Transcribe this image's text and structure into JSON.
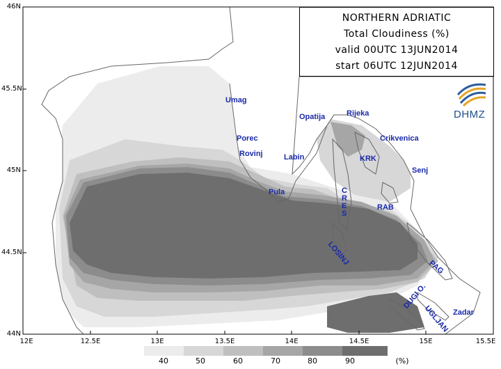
{
  "title_box": {
    "line1": "NORTHERN ADRIATIC",
    "line2": "Total Cloudiness (%)",
    "line3": "valid 00UTC 13JUN2014",
    "line4": "start 06UTC 12JUN2014"
  },
  "logo": {
    "text": "DHMZ",
    "icon": "dhmz-swirl-logo"
  },
  "axes": {
    "lat_ticks": [
      "46N",
      "45.5N",
      "45N",
      "44.5N",
      "44N"
    ],
    "lon_ticks": [
      "12E",
      "12.5E",
      "13E",
      "13.5E",
      "14E",
      "14.5E",
      "15E",
      "15.5E"
    ]
  },
  "places": {
    "umag": "Umag",
    "porec": "Porec",
    "rovinj": "Rovinj",
    "pula": "Pula",
    "labin": "Labin",
    "opatija": "Opatija",
    "rijeka": "Rijeka",
    "crikvenica": "Crikvenica",
    "krk": "KRK",
    "senj": "Senj",
    "cres": "CRES",
    "rab": "RAB",
    "losinj": "LOSINJ",
    "pag": "PAG",
    "zadar": "Zadar",
    "ugljan": "UGLJAN",
    "dugi_o": "DUGI O."
  },
  "legend": {
    "labels": [
      "40",
      "50",
      "60",
      "70",
      "80",
      "90"
    ],
    "unit": "(%)",
    "colors": [
      "#ececec",
      "#d7d7d7",
      "#bfbfbf",
      "#a6a6a6",
      "#8c8c8c",
      "#6e6e6e"
    ]
  }
}
